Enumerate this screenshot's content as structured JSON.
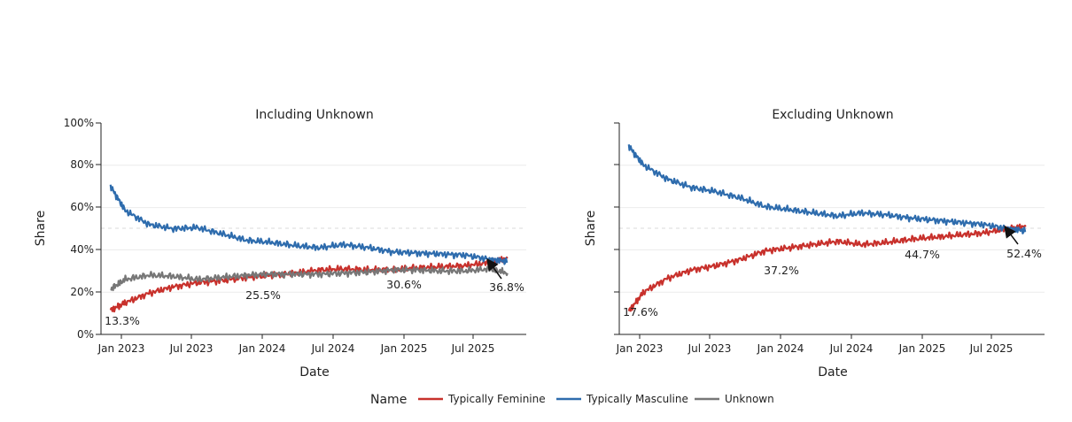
{
  "chart_data": [
    {
      "type": "line",
      "title": "Including Unknown",
      "xlabel": "Date",
      "ylabel": "Share",
      "x_ticks": [
        "Jan 2023",
        "Jul 2023",
        "Jan 2024",
        "Jul 2024",
        "Jan 2025",
        "Jul 2025"
      ],
      "y_ticks": [
        "0%",
        "20%",
        "40%",
        "60%",
        "80%",
        "100%"
      ],
      "ylim": [
        0,
        100
      ],
      "reference_line": 50,
      "grid": "horizontal",
      "x_dates": [
        "2022-11-25",
        "2023-01-01",
        "2023-03-01",
        "2023-05-01",
        "2023-07-01",
        "2023-09-01",
        "2023-11-01",
        "2024-01-01",
        "2024-03-01",
        "2024-05-01",
        "2024-07-01",
        "2024-09-01",
        "2024-11-01",
        "2025-01-01",
        "2025-03-01",
        "2025-05-01",
        "2025-07-01",
        "2025-08-15"
      ],
      "series": [
        {
          "name": "Typically Feminine",
          "color": "#c8312c",
          "values": [
            11.5,
            15.0,
            19.5,
            22.5,
            24.5,
            25.5,
            27.0,
            28.0,
            29.0,
            30.5,
            31.0,
            30.5,
            30.5,
            31.5,
            32.0,
            32.5,
            34.0,
            36.0
          ]
        },
        {
          "name": "Typically Masculine",
          "color": "#2e6cad",
          "values": [
            70.0,
            58.5,
            52.0,
            50.0,
            50.5,
            47.5,
            44.5,
            43.5,
            42.0,
            41.0,
            42.5,
            41.0,
            39.0,
            38.5,
            38.0,
            37.5,
            35.5,
            34.5
          ]
        },
        {
          "name": "Unknown",
          "color": "#777777",
          "values": [
            21.5,
            26.0,
            28.0,
            27.5,
            26.0,
            27.0,
            28.0,
            28.5,
            28.5,
            28.5,
            29.0,
            29.5,
            30.5,
            30.5,
            30.0,
            30.0,
            31.0,
            29.0
          ]
        }
      ],
      "annotations": [
        "13.3%",
        "25.5%",
        "30.6%",
        "36.8%"
      ]
    },
    {
      "type": "line",
      "title": "Excluding Unknown",
      "xlabel": "Date",
      "ylabel": "Share",
      "x_ticks": [
        "Jan 2023",
        "Jul 2023",
        "Jan 2024",
        "Jul 2024",
        "Jan 2025",
        "Jul 2025"
      ],
      "ylim": [
        0,
        100
      ],
      "reference_line": 50,
      "grid": "horizontal",
      "x_dates": [
        "2022-11-25",
        "2023-01-01",
        "2023-03-01",
        "2023-05-01",
        "2023-07-01",
        "2023-09-01",
        "2023-11-01",
        "2024-01-01",
        "2024-03-01",
        "2024-05-01",
        "2024-07-01",
        "2024-09-01",
        "2024-11-01",
        "2025-01-01",
        "2025-03-01",
        "2025-05-01",
        "2025-07-01",
        "2025-08-15"
      ],
      "series": [
        {
          "name": "Typically Feminine",
          "color": "#c8312c",
          "values": [
            11.0,
            20.0,
            26.5,
            30.5,
            32.5,
            35.5,
            39.5,
            41.0,
            42.5,
            44.0,
            42.5,
            43.5,
            45.0,
            46.0,
            47.0,
            48.0,
            50.0,
            51.0
          ]
        },
        {
          "name": "Typically Masculine",
          "color": "#2e6cad",
          "values": [
            89.0,
            80.0,
            73.5,
            69.5,
            67.5,
            64.5,
            60.5,
            59.0,
            57.5,
            56.0,
            57.5,
            56.5,
            55.0,
            54.0,
            53.0,
            52.0,
            50.0,
            49.0
          ]
        }
      ],
      "annotations": [
        "17.6%",
        "37.2%",
        "44.7%",
        "52.4%"
      ]
    }
  ],
  "legend": {
    "title": "Name",
    "entries": [
      {
        "label": "Typically Feminine",
        "color": "#c8312c"
      },
      {
        "label": "Typically Masculine",
        "color": "#2e6cad"
      },
      {
        "label": "Unknown",
        "color": "#777777"
      }
    ]
  }
}
